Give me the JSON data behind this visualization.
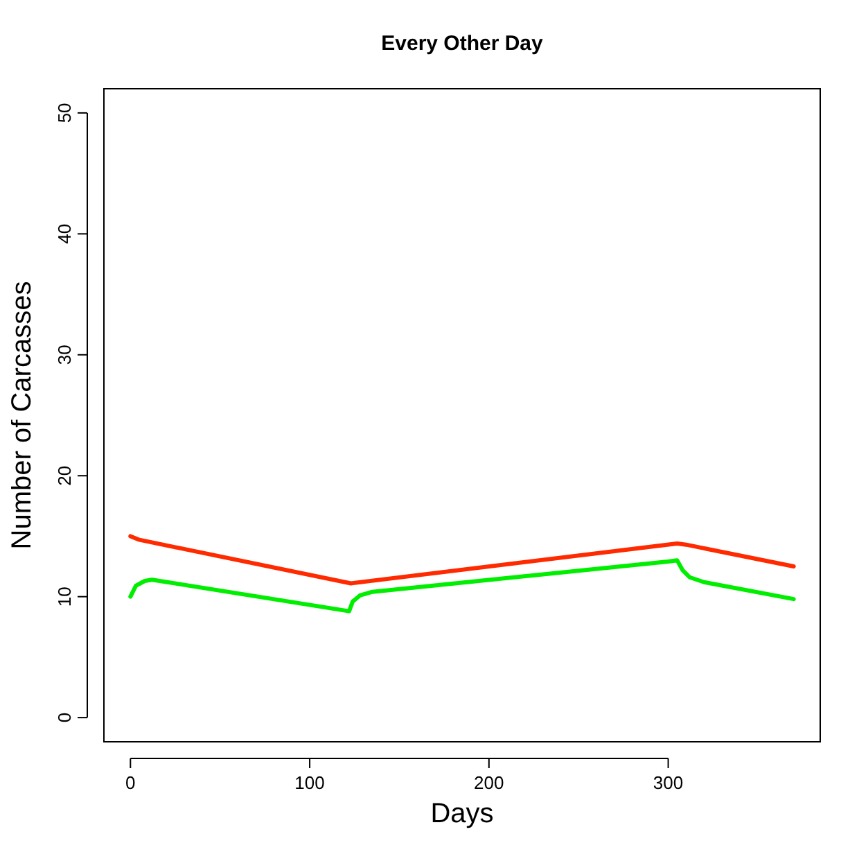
{
  "chart_data": {
    "type": "line",
    "title": "Every Other Day",
    "xlabel": "Days",
    "ylabel": "Number of Carcasses",
    "xlim": [
      -14.8,
      384.8
    ],
    "ylim": [
      -2,
      52
    ],
    "xticks": [
      0,
      100,
      200,
      300
    ],
    "yticks": [
      0,
      10,
      20,
      30,
      40,
      50
    ],
    "grid": false,
    "marker": "none",
    "line_style": "solid",
    "series": [
      {
        "color": "#ff2a00",
        "x": [
          0,
          5,
          123,
          305,
          310,
          370
        ],
        "values": [
          15,
          14.7,
          11.1,
          14.4,
          14.3,
          12.5
        ]
      },
      {
        "color": "#00ee00",
        "x": [
          0,
          3,
          8,
          12,
          122,
          124,
          128,
          135,
          300,
          305,
          308,
          312,
          320,
          370
        ],
        "values": [
          10,
          10.9,
          11.3,
          11.4,
          8.8,
          9.6,
          10.1,
          10.4,
          12.9,
          13,
          12.2,
          11.6,
          11.2,
          9.8
        ]
      }
    ]
  }
}
